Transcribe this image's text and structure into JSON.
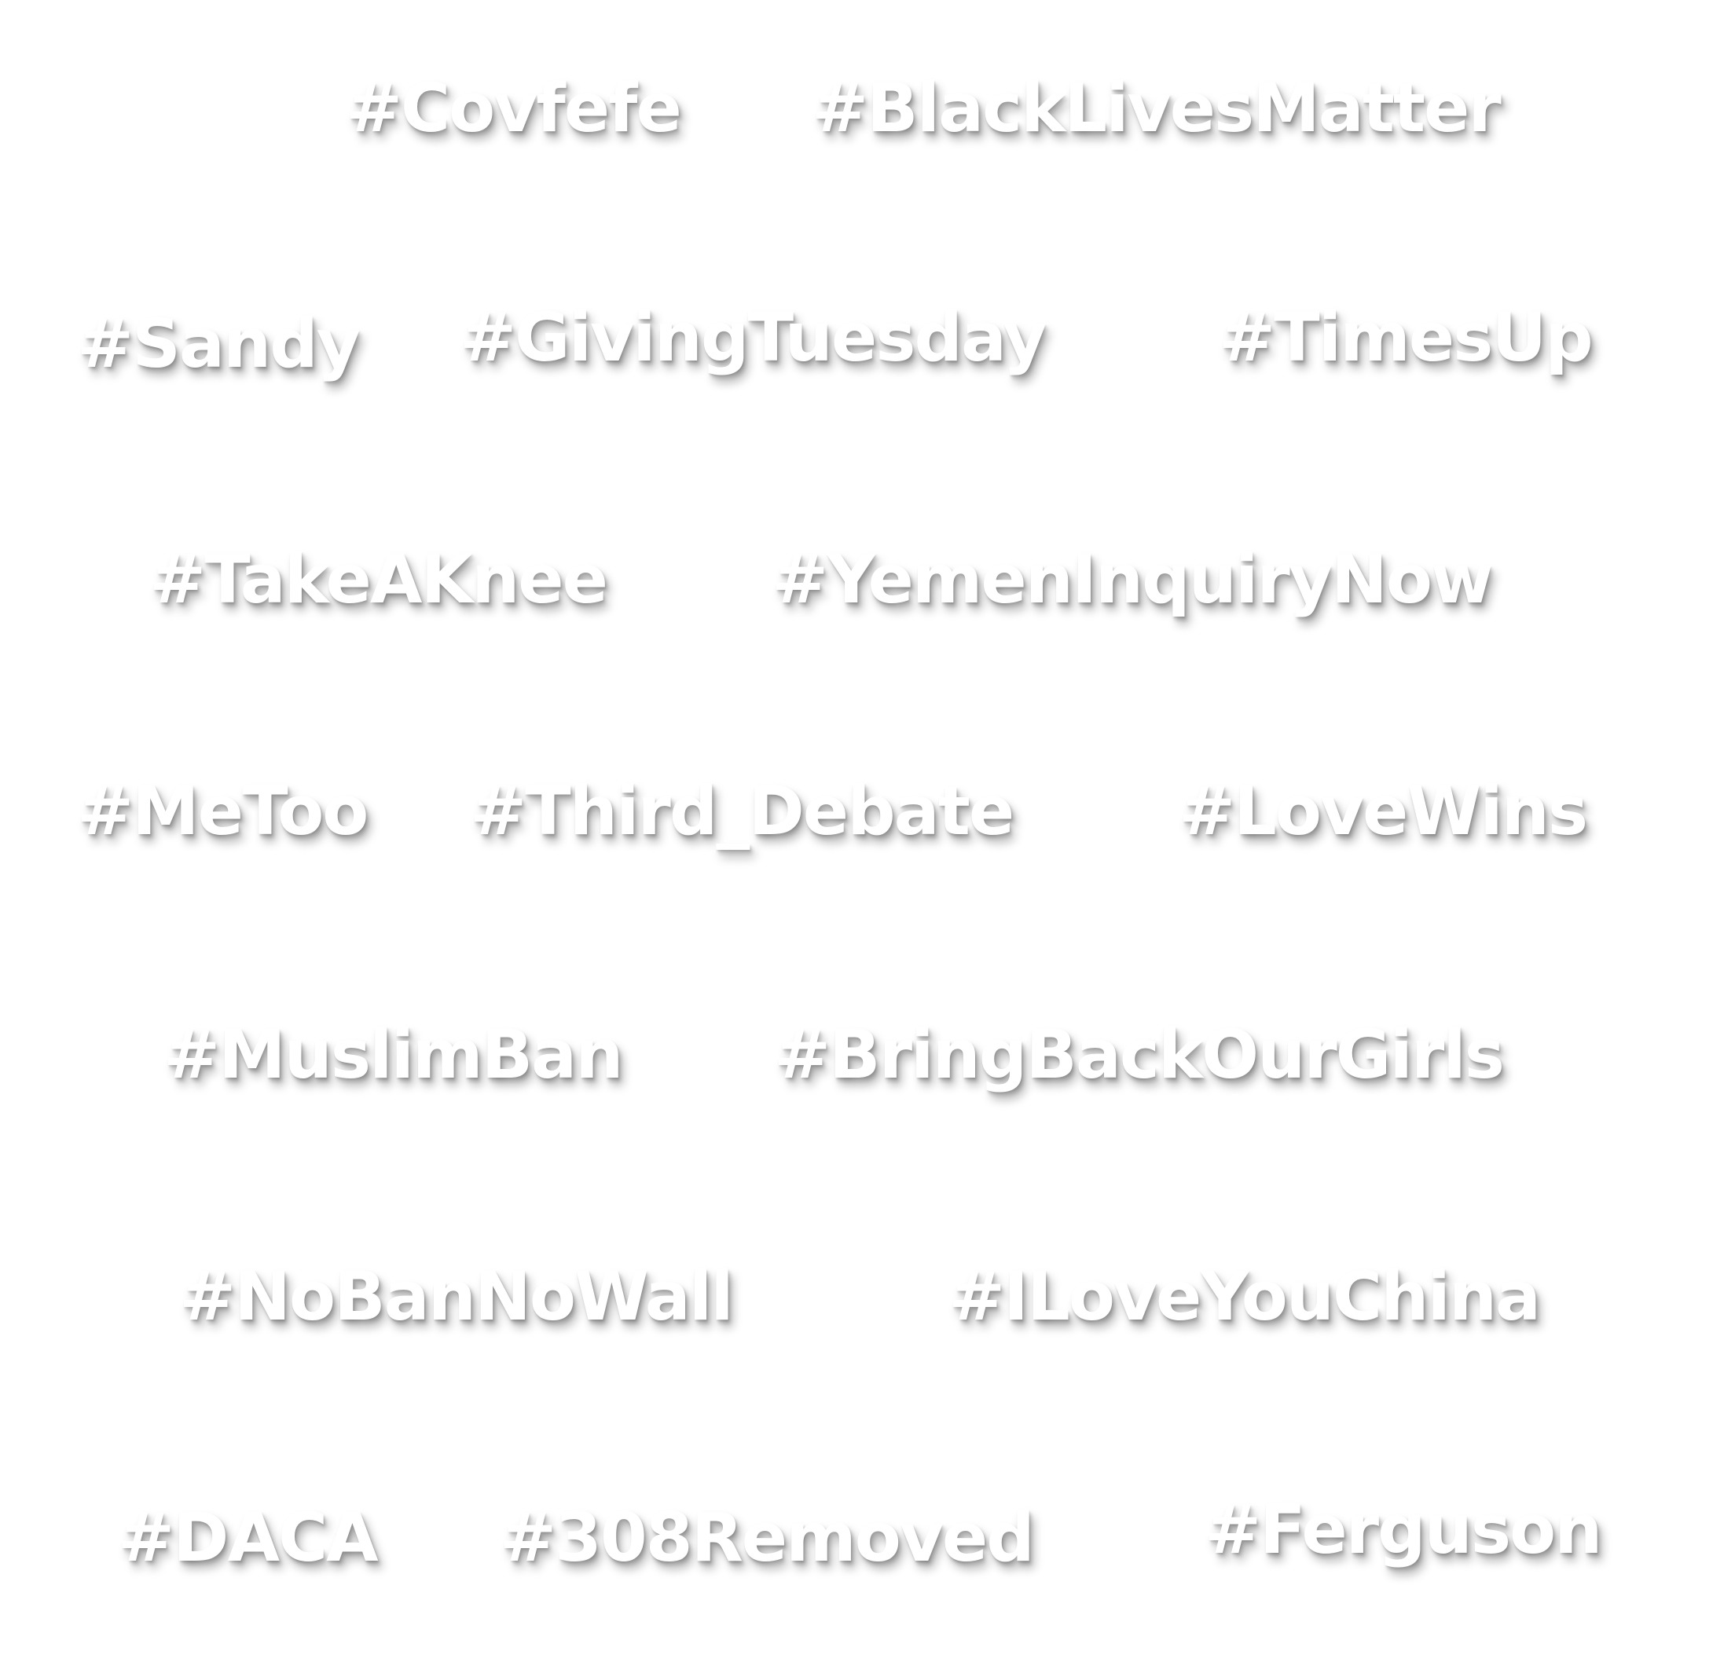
{
  "hashtags": [
    "#Covfefe",
    "#BlackLivesMatter",
    "#Sandy",
    "#GivingTuesday",
    "#TimesUp",
    "#TakeAKnee",
    "#YemenInquiryNow",
    "#MeToo",
    "#Third_Debate",
    "#LoveWins",
    "#MuslimBan",
    "#BringBackOurGirls",
    "#NoBanNoWall",
    "#ILoveYouChina",
    "#DACA",
    "#308Removed",
    "#Ferguson"
  ],
  "colors": {
    "background": "#ffffff",
    "text": "#ffffff",
    "shadow": "#000000"
  }
}
